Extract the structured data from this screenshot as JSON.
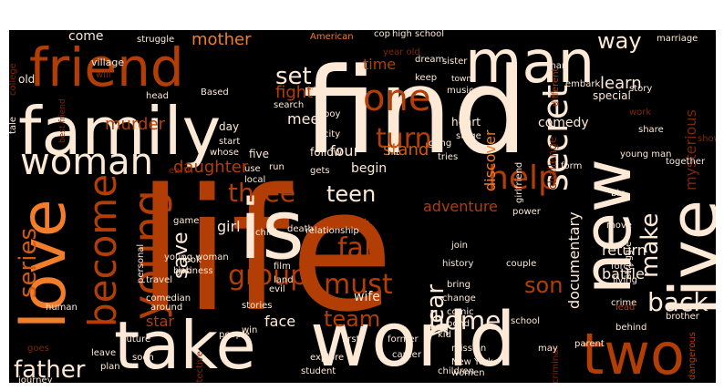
{
  "title": "",
  "colors": {
    "background": "#000000",
    "page": "#ffffff",
    "palette": [
      "#b33e05",
      "#fde9d6",
      "#f27d2b",
      "#7f2704",
      "#f6a668",
      "#d05b10",
      "#5a2007"
    ]
  },
  "words": [
    {
      "text": "life"
    },
    {
      "text": "find"
    },
    {
      "text": "family"
    },
    {
      "text": "friend"
    },
    {
      "text": "man"
    },
    {
      "text": "take"
    },
    {
      "text": "world"
    },
    {
      "text": "love"
    },
    {
      "text": "new"
    },
    {
      "text": "live"
    },
    {
      "text": "two"
    },
    {
      "text": "is"
    },
    {
      "text": "woman"
    },
    {
      "text": "one"
    },
    {
      "text": "become"
    },
    {
      "text": "young"
    },
    {
      "text": "help"
    },
    {
      "text": "secret"
    },
    {
      "text": "turn"
    },
    {
      "text": "way"
    },
    {
      "text": "teen"
    },
    {
      "text": "group"
    },
    {
      "text": "fall"
    },
    {
      "text": "back"
    },
    {
      "text": "father"
    },
    {
      "text": "home"
    },
    {
      "text": "must"
    },
    {
      "text": "team"
    },
    {
      "text": "series"
    },
    {
      "text": "make"
    },
    {
      "text": "three"
    },
    {
      "text": "son"
    },
    {
      "text": "year"
    },
    {
      "text": "daughter"
    },
    {
      "text": "save"
    },
    {
      "text": "set"
    },
    {
      "text": "stand"
    },
    {
      "text": "learn"
    },
    {
      "text": "discover"
    },
    {
      "text": "mysterious"
    },
    {
      "text": "documentary"
    },
    {
      "text": "murder"
    },
    {
      "text": "mother"
    },
    {
      "text": "fight"
    },
    {
      "text": "meet"
    },
    {
      "text": "adventure"
    },
    {
      "text": "begin"
    },
    {
      "text": "return"
    },
    {
      "text": "star"
    },
    {
      "text": "face"
    },
    {
      "text": "battle"
    },
    {
      "text": "girl"
    },
    {
      "text": "past"
    },
    {
      "text": "wife"
    },
    {
      "text": "four"
    },
    {
      "text": "time"
    },
    {
      "text": "come"
    },
    {
      "text": "struggle"
    },
    {
      "text": "village"
    },
    {
      "text": "will"
    },
    {
      "text": "old"
    },
    {
      "text": "college"
    },
    {
      "text": "best friend"
    },
    {
      "text": "head"
    },
    {
      "text": "Based"
    },
    {
      "text": "search"
    },
    {
      "text": "drama"
    },
    {
      "text": "American"
    },
    {
      "text": "high school"
    },
    {
      "text": "year old"
    },
    {
      "text": "dream"
    },
    {
      "text": "sister"
    },
    {
      "text": "town"
    },
    {
      "text": "music"
    },
    {
      "text": "keep"
    },
    {
      "text": "cop"
    },
    {
      "text": "special"
    },
    {
      "text": "embark"
    },
    {
      "text": "marriage"
    },
    {
      "text": "different"
    },
    {
      "text": "story"
    },
    {
      "text": "work"
    },
    {
      "text": "share"
    },
    {
      "text": "young man"
    },
    {
      "text": "show"
    },
    {
      "text": "together"
    },
    {
      "text": "comedy"
    },
    {
      "text": "challenge"
    },
    {
      "text": "heart"
    },
    {
      "text": "stage"
    },
    {
      "text": "boy"
    },
    {
      "text": "city"
    },
    {
      "text": "follow"
    },
    {
      "text": "gets"
    },
    {
      "text": "hit"
    },
    {
      "text": "day"
    },
    {
      "text": "start"
    },
    {
      "text": "whose"
    },
    {
      "text": "five"
    },
    {
      "text": "use"
    },
    {
      "text": "local"
    },
    {
      "text": "earth"
    },
    {
      "text": "run"
    },
    {
      "text": "gang"
    },
    {
      "text": "tries"
    },
    {
      "text": "girlfriend"
    },
    {
      "text": "power"
    },
    {
      "text": "form"
    },
    {
      "text": "big"
    },
    {
      "text": "move"
    },
    {
      "text": "struggle"
    },
    {
      "text": "force"
    },
    {
      "text": "living"
    },
    {
      "text": "crime"
    },
    {
      "text": "lead"
    },
    {
      "text": "brother"
    },
    {
      "text": "behind"
    },
    {
      "text": "dangerous"
    },
    {
      "text": "game"
    },
    {
      "text": "child"
    },
    {
      "text": "death"
    },
    {
      "text": "relationship"
    },
    {
      "text": "join"
    },
    {
      "text": "couple"
    },
    {
      "text": "history"
    },
    {
      "text": "bring"
    },
    {
      "text": "change"
    },
    {
      "text": "comic"
    },
    {
      "text": "bond"
    },
    {
      "text": "school"
    },
    {
      "text": "former"
    },
    {
      "text": "kid"
    },
    {
      "text": "mission"
    },
    {
      "text": "New York"
    },
    {
      "text": "women"
    },
    {
      "text": "career"
    },
    {
      "text": "explore"
    },
    {
      "text": "student"
    },
    {
      "text": "soon"
    },
    {
      "text": "plan"
    },
    {
      "text": "leave"
    },
    {
      "text": "goes"
    },
    {
      "text": "journey"
    },
    {
      "text": "human"
    },
    {
      "text": "personal"
    },
    {
      "text": "travel"
    },
    {
      "text": "comedian"
    },
    {
      "text": "around"
    },
    {
      "text": "future"
    },
    {
      "text": "stories"
    },
    {
      "text": "win"
    },
    {
      "text": "people"
    },
    {
      "text": "first"
    },
    {
      "text": "evil"
    },
    {
      "text": "film"
    },
    {
      "text": "land"
    },
    {
      "text": "business"
    },
    {
      "text": "young woman"
    },
    {
      "text": "job"
    },
    {
      "text": "look"
    },
    {
      "text": "tale"
    },
    {
      "text": "detective"
    },
    {
      "text": "parent"
    },
    {
      "text": "criminal"
    },
    {
      "text": "may"
    },
    {
      "text": "children"
    },
    {
      "text": "man"
    }
  ]
}
